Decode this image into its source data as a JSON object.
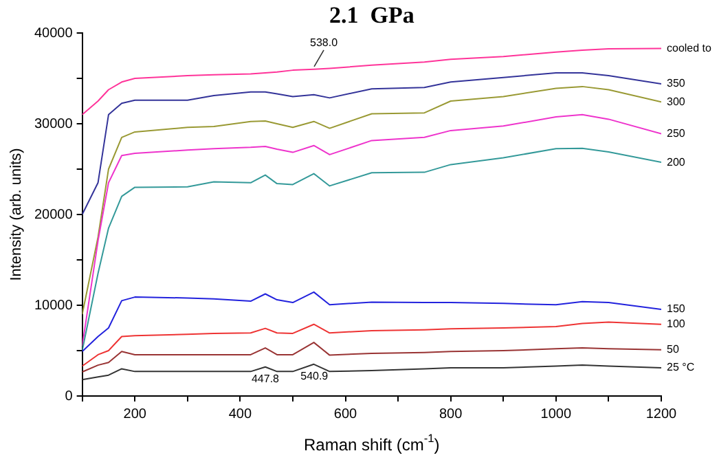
{
  "chart_data": {
    "type": "line",
    "title": "2.1  GPa",
    "xlabel": "Raman shift (cm$^{-1}$)",
    "ylabel": "Intensity (arb. units)",
    "x": [
      100,
      130,
      150,
      175,
      200,
      300,
      350,
      420,
      447.8,
      470,
      500,
      540,
      570,
      650,
      750,
      800,
      900,
      1000,
      1050,
      1100,
      1200
    ],
    "series": [
      {
        "name": "25 °C",
        "color": "#333333",
        "values": [
          1800,
          2100,
          2300,
          3000,
          2700,
          2700,
          2700,
          2700,
          3200,
          2700,
          2700,
          3500,
          2700,
          2800,
          3000,
          3100,
          3100,
          3300,
          3400,
          3300,
          3100
        ]
      },
      {
        "name": "50",
        "color": "#993333",
        "values": [
          2650,
          3400,
          3700,
          4900,
          4550,
          4550,
          4550,
          4550,
          5300,
          4550,
          4550,
          5900,
          4500,
          4700,
          4800,
          4900,
          5000,
          5200,
          5300,
          5200,
          5100
        ]
      },
      {
        "name": "100",
        "color": "#ee3333",
        "values": [
          3300,
          4550,
          5000,
          6550,
          6650,
          6800,
          6900,
          6950,
          7450,
          6950,
          6900,
          7900,
          6950,
          7200,
          7300,
          7400,
          7500,
          7650,
          8000,
          8150,
          7900
        ]
      },
      {
        "name": "150",
        "color": "#2222dd",
        "values": [
          4900,
          6550,
          7500,
          10500,
          10900,
          10800,
          10700,
          10450,
          11250,
          10600,
          10300,
          11450,
          10050,
          10350,
          10300,
          10300,
          10200,
          10050,
          10400,
          10300,
          9550
        ]
      },
      {
        "name": "200",
        "color": "#339999",
        "values": [
          5000,
          13500,
          18500,
          22000,
          23000,
          23050,
          23600,
          23500,
          24350,
          23400,
          23300,
          24500,
          23150,
          24600,
          24650,
          25500,
          26250,
          27250,
          27300,
          26900,
          25750
        ]
      },
      {
        "name": "250",
        "color": "#ee33cc",
        "values": [
          5500,
          17100,
          23500,
          26500,
          26750,
          27100,
          27250,
          27400,
          27500,
          27200,
          26850,
          27600,
          26600,
          28150,
          28500,
          29250,
          29750,
          30750,
          31000,
          30500,
          28900
        ]
      },
      {
        "name": "300",
        "color": "#999933",
        "values": [
          9000,
          17500,
          25000,
          28500,
          29100,
          29600,
          29700,
          30250,
          30300,
          30000,
          29600,
          30250,
          29500,
          31100,
          31200,
          32500,
          33000,
          33900,
          34100,
          33750,
          32400
        ]
      },
      {
        "name": "350",
        "color": "#333399",
        "values": [
          20000,
          23500,
          31000,
          32250,
          32600,
          32600,
          33100,
          33500,
          33500,
          33300,
          33000,
          33200,
          32850,
          33850,
          34000,
          34600,
          35100,
          35600,
          35600,
          35300,
          34400
        ]
      },
      {
        "name": "cooled to",
        "color": "#ff3399",
        "values": [
          31000,
          32500,
          33750,
          34600,
          35000,
          35300,
          35400,
          35500,
          35600,
          35700,
          35900,
          36000,
          36100,
          36450,
          36800,
          37100,
          37400,
          37900,
          38100,
          38250,
          38300
        ]
      }
    ],
    "annotations": [
      {
        "text": "447.8",
        "x": 447.8,
        "y": 3200
      },
      {
        "text": "540.9",
        "x": 540.9,
        "y": 3500
      },
      {
        "text": "538.0",
        "x": 538,
        "y": 36000
      }
    ],
    "xlim": [
      100,
      1200
    ],
    "xticks": [
      {
        "value": 100,
        "label": null
      },
      200,
      {
        "value": 300,
        "label": null
      },
      400,
      {
        "value": 500,
        "label": null
      },
      600,
      {
        "value": 700,
        "label": null
      },
      800,
      {
        "value": 900,
        "label": null
      },
      1000,
      {
        "value": 1100,
        "label": null
      },
      1200
    ],
    "ylim": [
      0,
      40000
    ],
    "yticks": [
      0,
      {
        "value": 5000,
        "label": null
      },
      10000,
      {
        "value": 15000,
        "label": null
      },
      20000,
      {
        "value": 25000,
        "label": null
      },
      30000,
      {
        "value": 35000,
        "label": null
      },
      40000
    ],
    "grid": false,
    "legend": false,
    "marker": "none",
    "line_style": "solid"
  }
}
